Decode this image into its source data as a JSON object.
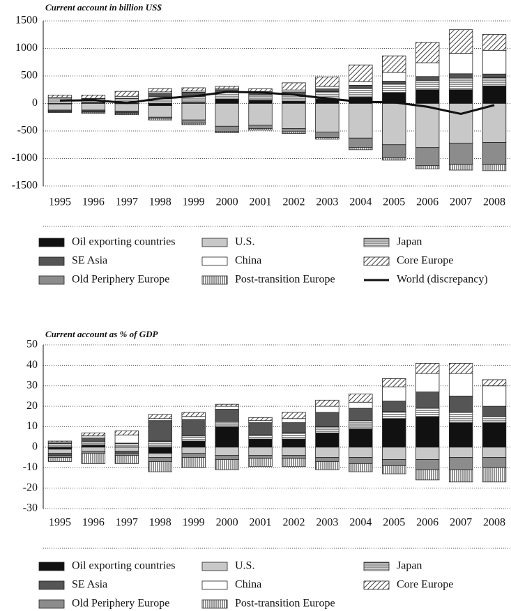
{
  "chart_data": [
    {
      "type": "bar",
      "title": "Current account in billion US$",
      "categories": [
        "1995",
        "1996",
        "1997",
        "1998",
        "1999",
        "2000",
        "2001",
        "2002",
        "2003",
        "2004",
        "2005",
        "2006",
        "2007",
        "2008"
      ],
      "ylim": [
        -1500,
        1500
      ],
      "yticks": [
        -1500,
        -1000,
        -500,
        0,
        500,
        1000,
        1500
      ],
      "grid": true,
      "stacked": true,
      "series": [
        {
          "name": "Oil exporting countries",
          "color": "#111111",
          "values": [
            -10,
            20,
            -5,
            -40,
            20,
            80,
            60,
            40,
            80,
            110,
            200,
            250,
            250,
            320
          ]
        },
        {
          "name": "U.S.",
          "color": "#c8c8c8",
          "values": [
            -110,
            -120,
            -135,
            -210,
            -300,
            -415,
            -395,
            -455,
            -520,
            -630,
            -750,
            -800,
            -720,
            -710
          ]
        },
        {
          "name": "Japan",
          "color": "#ffffff",
          "pattern": "horizontal",
          "values": [
            110,
            65,
            95,
            120,
            115,
            120,
            90,
            110,
            135,
            170,
            165,
            170,
            210,
            155
          ]
        },
        {
          "name": "SE Asia",
          "color": "#555555",
          "values": [
            -20,
            -30,
            -30,
            60,
            70,
            50,
            50,
            60,
            50,
            50,
            40,
            70,
            80,
            60
          ]
        },
        {
          "name": "China",
          "color": "#ffffff",
          "values": [
            2,
            7,
            35,
            30,
            20,
            20,
            17,
            35,
            45,
            70,
            160,
            250,
            370,
            430
          ]
        },
        {
          "name": "Core Europe",
          "color": "#ffffff",
          "pattern": "diagonal",
          "values": [
            40,
            60,
            90,
            60,
            60,
            40,
            50,
            130,
            170,
            300,
            300,
            370,
            430,
            290
          ]
        },
        {
          "name": "Old Periphery Europe",
          "color": "#8c8c8c",
          "values": [
            -10,
            -10,
            -10,
            -20,
            -60,
            -90,
            -60,
            -60,
            -100,
            -170,
            -240,
            -330,
            -390,
            -400
          ]
        },
        {
          "name": "Post-transition Europe",
          "color": "#ffffff",
          "pattern": "vertical",
          "values": [
            -15,
            -20,
            -25,
            -30,
            -25,
            -25,
            -30,
            -30,
            -30,
            -40,
            -40,
            -60,
            -100,
            -110
          ]
        },
        {
          "name": "World (discrepancy)",
          "type": "line",
          "color": "#111111",
          "values": [
            50,
            60,
            10,
            90,
            130,
            210,
            200,
            160,
            90,
            30,
            20,
            -60,
            -190,
            -30
          ]
        }
      ]
    },
    {
      "type": "bar",
      "title": "Current account as % of GDP",
      "categories": [
        "1995",
        "1996",
        "1997",
        "1998",
        "1999",
        "2000",
        "2001",
        "2002",
        "2003",
        "2004",
        "2005",
        "2006",
        "2007",
        "2008"
      ],
      "ylim": [
        -30,
        50
      ],
      "yticks": [
        -30,
        -20,
        -10,
        0,
        10,
        20,
        30,
        40,
        50
      ],
      "grid": true,
      "stacked": true,
      "series": [
        {
          "name": "Oil exporting countries",
          "color": "#111111",
          "values": [
            -1,
            1,
            0,
            -3,
            3,
            10,
            4,
            4,
            7,
            9,
            14,
            15,
            12,
            12
          ]
        },
        {
          "name": "U.S.",
          "color": "#c8c8c8",
          "values": [
            -2,
            -2,
            -2,
            -2,
            -3,
            -4,
            -4,
            -4,
            -5,
            -5,
            -6,
            -6,
            -5,
            -5
          ]
        },
        {
          "name": "Japan",
          "color": "#ffffff",
          "pattern": "horizontal",
          "values": [
            2,
            1.5,
            2,
            3,
            2.5,
            2.5,
            2,
            3,
            3,
            4,
            3.5,
            4,
            5,
            3
          ]
        },
        {
          "name": "SE Asia",
          "color": "#555555",
          "values": [
            -1,
            2,
            -1,
            10,
            8,
            6,
            6,
            5,
            7,
            6,
            5,
            8,
            8,
            5
          ]
        },
        {
          "name": "China",
          "color": "#ffffff",
          "values": [
            0.5,
            1,
            4,
            1,
            1.5,
            1.5,
            1,
            2,
            3,
            3,
            7,
            9,
            11,
            10
          ]
        },
        {
          "name": "Core Europe",
          "color": "#ffffff",
          "pattern": "diagonal",
          "values": [
            0.5,
            1.5,
            2,
            2,
            2,
            1,
            1.5,
            3,
            3,
            4,
            4,
            5,
            5,
            3
          ]
        },
        {
          "name": "Old Periphery Europe",
          "color": "#8c8c8c",
          "values": [
            -1,
            -1,
            -1,
            -2,
            -2,
            -2,
            -1.5,
            -1.5,
            -2,
            -3,
            -3,
            -5,
            -6,
            -5
          ]
        },
        {
          "name": "Post-transition Europe",
          "color": "#ffffff",
          "pattern": "vertical",
          "values": [
            -2,
            -5,
            -4,
            -5,
            -5,
            -5,
            -4,
            -4,
            -4,
            -4,
            -4,
            -5,
            -6,
            -7
          ]
        }
      ]
    }
  ]
}
